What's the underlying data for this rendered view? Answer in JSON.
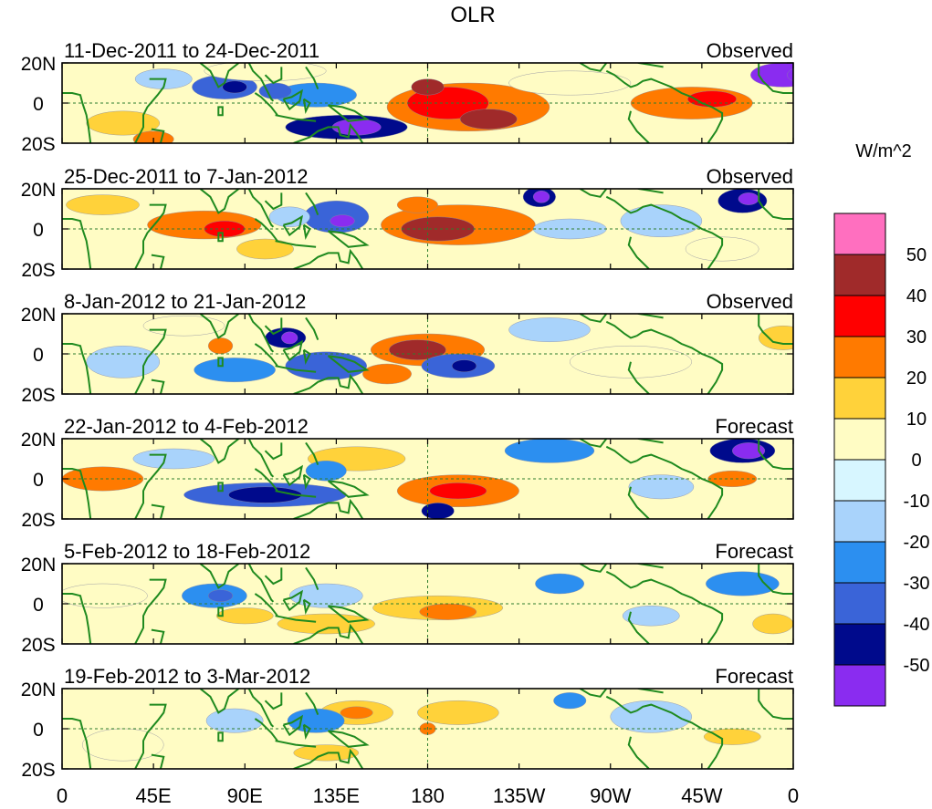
{
  "chart_data": {
    "type": "heatmap",
    "title": "OLR",
    "units_label": "W/m^2",
    "x_ticks": [
      "0",
      "45E",
      "90E",
      "135E",
      "180",
      "135W",
      "90W",
      "45W",
      "0"
    ],
    "y_ticks": [
      "20N",
      "0",
      "20S"
    ],
    "colorbar": {
      "labels": [
        "50",
        "40",
        "30",
        "20",
        "10",
        "0",
        "-10",
        "-20",
        "-30",
        "-40",
        "-50"
      ],
      "colors": [
        "#ff6fbf",
        "#a02a2a",
        "#ff0000",
        "#ff7a00",
        "#ffd23a",
        "#fffcc4",
        "#d7f6ff",
        "#a9d3fb",
        "#2c8ff0",
        "#3a64d8",
        "#000a8c",
        "#8a2cf0"
      ],
      "bins": [
        ">50",
        "40 to 50",
        "30 to 40",
        "20 to 30",
        "10 to 20",
        "0 to 10",
        "-10 to 0",
        "-20 to -10",
        "-30 to -20",
        "-40 to -30",
        "-50 to -40",
        "<-50"
      ]
    },
    "panels": [
      {
        "period": "11-Dec-2011 to 24-Dec-2011",
        "kind": "Observed",
        "anomalies": [
          {
            "lon": 355,
            "lat": 14,
            "rx": 16,
            "ry": 6,
            "value": -55
          },
          {
            "lon": 365,
            "lat": 14,
            "rx": 8,
            "ry": 4,
            "value": -58
          },
          {
            "lon": 310,
            "lat": 0,
            "rx": 30,
            "ry": 8,
            "value": 24
          },
          {
            "lon": 320,
            "lat": 2,
            "rx": 12,
            "ry": 4,
            "value": 32
          },
          {
            "lon": 200,
            "lat": -2,
            "rx": 40,
            "ry": 12,
            "value": 26
          },
          {
            "lon": 190,
            "lat": 0,
            "rx": 20,
            "ry": 8,
            "value": 35
          },
          {
            "lon": 210,
            "lat": -8,
            "rx": 14,
            "ry": 5,
            "value": 45
          },
          {
            "lon": 180,
            "lat": 8,
            "rx": 8,
            "ry": 4,
            "value": 42
          },
          {
            "lon": 140,
            "lat": -12,
            "rx": 30,
            "ry": 6,
            "value": -42
          },
          {
            "lon": 145,
            "lat": -12,
            "rx": 12,
            "ry": 4,
            "value": -52
          },
          {
            "lon": 125,
            "lat": 4,
            "rx": 20,
            "ry": 6,
            "value": -25
          },
          {
            "lon": 80,
            "lat": 8,
            "rx": 16,
            "ry": 6,
            "value": -38
          },
          {
            "lon": 85,
            "lat": 8,
            "rx": 6,
            "ry": 3,
            "value": -48
          },
          {
            "lon": 105,
            "lat": 6,
            "rx": 8,
            "ry": 4,
            "value": -35
          },
          {
            "lon": 50,
            "lat": 12,
            "rx": 14,
            "ry": 5,
            "value": -18
          },
          {
            "lon": 30,
            "lat": -10,
            "rx": 18,
            "ry": 6,
            "value": 14
          },
          {
            "lon": 45,
            "lat": -18,
            "rx": 10,
            "ry": 4,
            "value": 25
          },
          {
            "lon": 100,
            "lat": 16,
            "rx": 30,
            "ry": 5,
            "value": 8
          },
          {
            "lon": 250,
            "lat": 10,
            "rx": 30,
            "ry": 6,
            "value": 6
          }
        ]
      },
      {
        "period": "25-Dec-2011 to 7-Jan-2012",
        "kind": "Observed",
        "anomalies": [
          {
            "lon": 195,
            "lat": 2,
            "rx": 38,
            "ry": 10,
            "value": 30
          },
          {
            "lon": 185,
            "lat": 0,
            "rx": 18,
            "ry": 6,
            "value": 42
          },
          {
            "lon": 175,
            "lat": 12,
            "rx": 10,
            "ry": 4,
            "value": 22
          },
          {
            "lon": 70,
            "lat": 2,
            "rx": 28,
            "ry": 7,
            "value": 22
          },
          {
            "lon": 80,
            "lat": 0,
            "rx": 10,
            "ry": 4,
            "value": 34
          },
          {
            "lon": 100,
            "lat": -10,
            "rx": 14,
            "ry": 5,
            "value": 20
          },
          {
            "lon": 135,
            "lat": 6,
            "rx": 16,
            "ry": 8,
            "value": -38
          },
          {
            "lon": 138,
            "lat": 4,
            "rx": 6,
            "ry": 3,
            "value": -50
          },
          {
            "lon": 112,
            "lat": 6,
            "rx": 10,
            "ry": 5,
            "value": -18
          },
          {
            "lon": 235,
            "lat": 16,
            "rx": 8,
            "ry": 5,
            "value": -45
          },
          {
            "lon": 236,
            "lat": 16,
            "rx": 4,
            "ry": 3,
            "value": -55
          },
          {
            "lon": 335,
            "lat": 14,
            "rx": 12,
            "ry": 6,
            "value": -40
          },
          {
            "lon": 338,
            "lat": 15,
            "rx": 5,
            "ry": 3,
            "value": -52
          },
          {
            "lon": 295,
            "lat": 4,
            "rx": 20,
            "ry": 8,
            "value": -14
          },
          {
            "lon": 250,
            "lat": 0,
            "rx": 18,
            "ry": 5,
            "value": -12
          },
          {
            "lon": 20,
            "lat": 12,
            "rx": 18,
            "ry": 5,
            "value": 12
          },
          {
            "lon": 325,
            "lat": -10,
            "rx": 18,
            "ry": 6,
            "value": 8
          }
        ]
      },
      {
        "period": "8-Jan-2012 to 21-Jan-2012",
        "kind": "Observed",
        "anomalies": [
          {
            "lon": 180,
            "lat": 2,
            "rx": 28,
            "ry": 8,
            "value": 28
          },
          {
            "lon": 175,
            "lat": 2,
            "rx": 14,
            "ry": 5,
            "value": 44
          },
          {
            "lon": 160,
            "lat": -10,
            "rx": 12,
            "ry": 5,
            "value": 24
          },
          {
            "lon": 195,
            "lat": -6,
            "rx": 18,
            "ry": 6,
            "value": -30
          },
          {
            "lon": 198,
            "lat": -6,
            "rx": 6,
            "ry": 3,
            "value": -48
          },
          {
            "lon": 130,
            "lat": -6,
            "rx": 20,
            "ry": 7,
            "value": -32
          },
          {
            "lon": 110,
            "lat": 8,
            "rx": 10,
            "ry": 5,
            "value": -40
          },
          {
            "lon": 112,
            "lat": 8,
            "rx": 4,
            "ry": 3,
            "value": -50
          },
          {
            "lon": 85,
            "lat": -8,
            "rx": 20,
            "ry": 6,
            "value": -22
          },
          {
            "lon": 78,
            "lat": 4,
            "rx": 6,
            "ry": 4,
            "value": 30
          },
          {
            "lon": 30,
            "lat": -4,
            "rx": 18,
            "ry": 8,
            "value": -18
          },
          {
            "lon": 240,
            "lat": 12,
            "rx": 20,
            "ry": 6,
            "value": -12
          },
          {
            "lon": 355,
            "lat": 8,
            "rx": 12,
            "ry": 6,
            "value": 14
          },
          {
            "lon": 60,
            "lat": 14,
            "rx": 20,
            "ry": 5,
            "value": 8
          },
          {
            "lon": 280,
            "lat": -4,
            "rx": 30,
            "ry": 8,
            "value": 5
          }
        ]
      },
      {
        "period": "22-Jan-2012 to 4-Feb-2012",
        "kind": "Forecast",
        "anomalies": [
          {
            "lon": 195,
            "lat": -6,
            "rx": 30,
            "ry": 8,
            "value": 26
          },
          {
            "lon": 195,
            "lat": -6,
            "rx": 14,
            "ry": 4,
            "value": 36
          },
          {
            "lon": 145,
            "lat": 10,
            "rx": 24,
            "ry": 6,
            "value": 16
          },
          {
            "lon": 20,
            "lat": 0,
            "rx": 20,
            "ry": 6,
            "value": 22
          },
          {
            "lon": 330,
            "lat": 0,
            "rx": 12,
            "ry": 4,
            "value": 22
          },
          {
            "lon": 100,
            "lat": -8,
            "rx": 40,
            "ry": 6,
            "value": -35
          },
          {
            "lon": 100,
            "lat": -8,
            "rx": 18,
            "ry": 4,
            "value": -45
          },
          {
            "lon": 185,
            "lat": -16,
            "rx": 8,
            "ry": 4,
            "value": -48
          },
          {
            "lon": 335,
            "lat": 14,
            "rx": 16,
            "ry": 6,
            "value": -40
          },
          {
            "lon": 338,
            "lat": 14,
            "rx": 8,
            "ry": 4,
            "value": -52
          },
          {
            "lon": 240,
            "lat": 14,
            "rx": 22,
            "ry": 6,
            "value": -25
          },
          {
            "lon": 295,
            "lat": -4,
            "rx": 16,
            "ry": 6,
            "value": -18
          },
          {
            "lon": 55,
            "lat": 10,
            "rx": 20,
            "ry": 5,
            "value": -14
          },
          {
            "lon": 130,
            "lat": 4,
            "rx": 10,
            "ry": 5,
            "value": -20
          }
        ]
      },
      {
        "period": "5-Feb-2012 to 18-Feb-2012",
        "kind": "Forecast",
        "anomalies": [
          {
            "lon": 185,
            "lat": -2,
            "rx": 32,
            "ry": 6,
            "value": 16
          },
          {
            "lon": 190,
            "lat": -4,
            "rx": 14,
            "ry": 4,
            "value": 24
          },
          {
            "lon": 130,
            "lat": -10,
            "rx": 24,
            "ry": 5,
            "value": 13
          },
          {
            "lon": 90,
            "lat": -6,
            "rx": 14,
            "ry": 4,
            "value": 14
          },
          {
            "lon": 75,
            "lat": 4,
            "rx": 16,
            "ry": 6,
            "value": -24
          },
          {
            "lon": 78,
            "lat": 4,
            "rx": 6,
            "ry": 3,
            "value": -32
          },
          {
            "lon": 130,
            "lat": 4,
            "rx": 18,
            "ry": 6,
            "value": -14
          },
          {
            "lon": 335,
            "lat": 10,
            "rx": 18,
            "ry": 6,
            "value": -26
          },
          {
            "lon": 245,
            "lat": 10,
            "rx": 12,
            "ry": 5,
            "value": -20
          },
          {
            "lon": 290,
            "lat": -6,
            "rx": 14,
            "ry": 5,
            "value": -14
          },
          {
            "lon": 350,
            "lat": -10,
            "rx": 10,
            "ry": 5,
            "value": 12
          },
          {
            "lon": 20,
            "lat": 4,
            "rx": 22,
            "ry": 6,
            "value": 8
          }
        ]
      },
      {
        "period": "19-Feb-2012 to 3-Mar-2012",
        "kind": "Forecast",
        "anomalies": [
          {
            "lon": 145,
            "lat": 8,
            "rx": 18,
            "ry": 6,
            "value": 14
          },
          {
            "lon": 145,
            "lat": 8,
            "rx": 8,
            "ry": 3,
            "value": 22
          },
          {
            "lon": 195,
            "lat": 8,
            "rx": 20,
            "ry": 6,
            "value": 12
          },
          {
            "lon": 180,
            "lat": 0,
            "rx": 4,
            "ry": 3,
            "value": 22
          },
          {
            "lon": 330,
            "lat": -4,
            "rx": 14,
            "ry": 4,
            "value": 20
          },
          {
            "lon": 125,
            "lat": 4,
            "rx": 14,
            "ry": 6,
            "value": -22
          },
          {
            "lon": 250,
            "lat": 14,
            "rx": 8,
            "ry": 4,
            "value": -22
          },
          {
            "lon": 85,
            "lat": 4,
            "rx": 14,
            "ry": 6,
            "value": -12
          },
          {
            "lon": 290,
            "lat": 6,
            "rx": 20,
            "ry": 8,
            "value": -12
          },
          {
            "lon": 130,
            "lat": -12,
            "rx": 16,
            "ry": 4,
            "value": 12
          },
          {
            "lon": 30,
            "lat": -8,
            "rx": 20,
            "ry": 8,
            "value": 6
          }
        ]
      }
    ]
  }
}
